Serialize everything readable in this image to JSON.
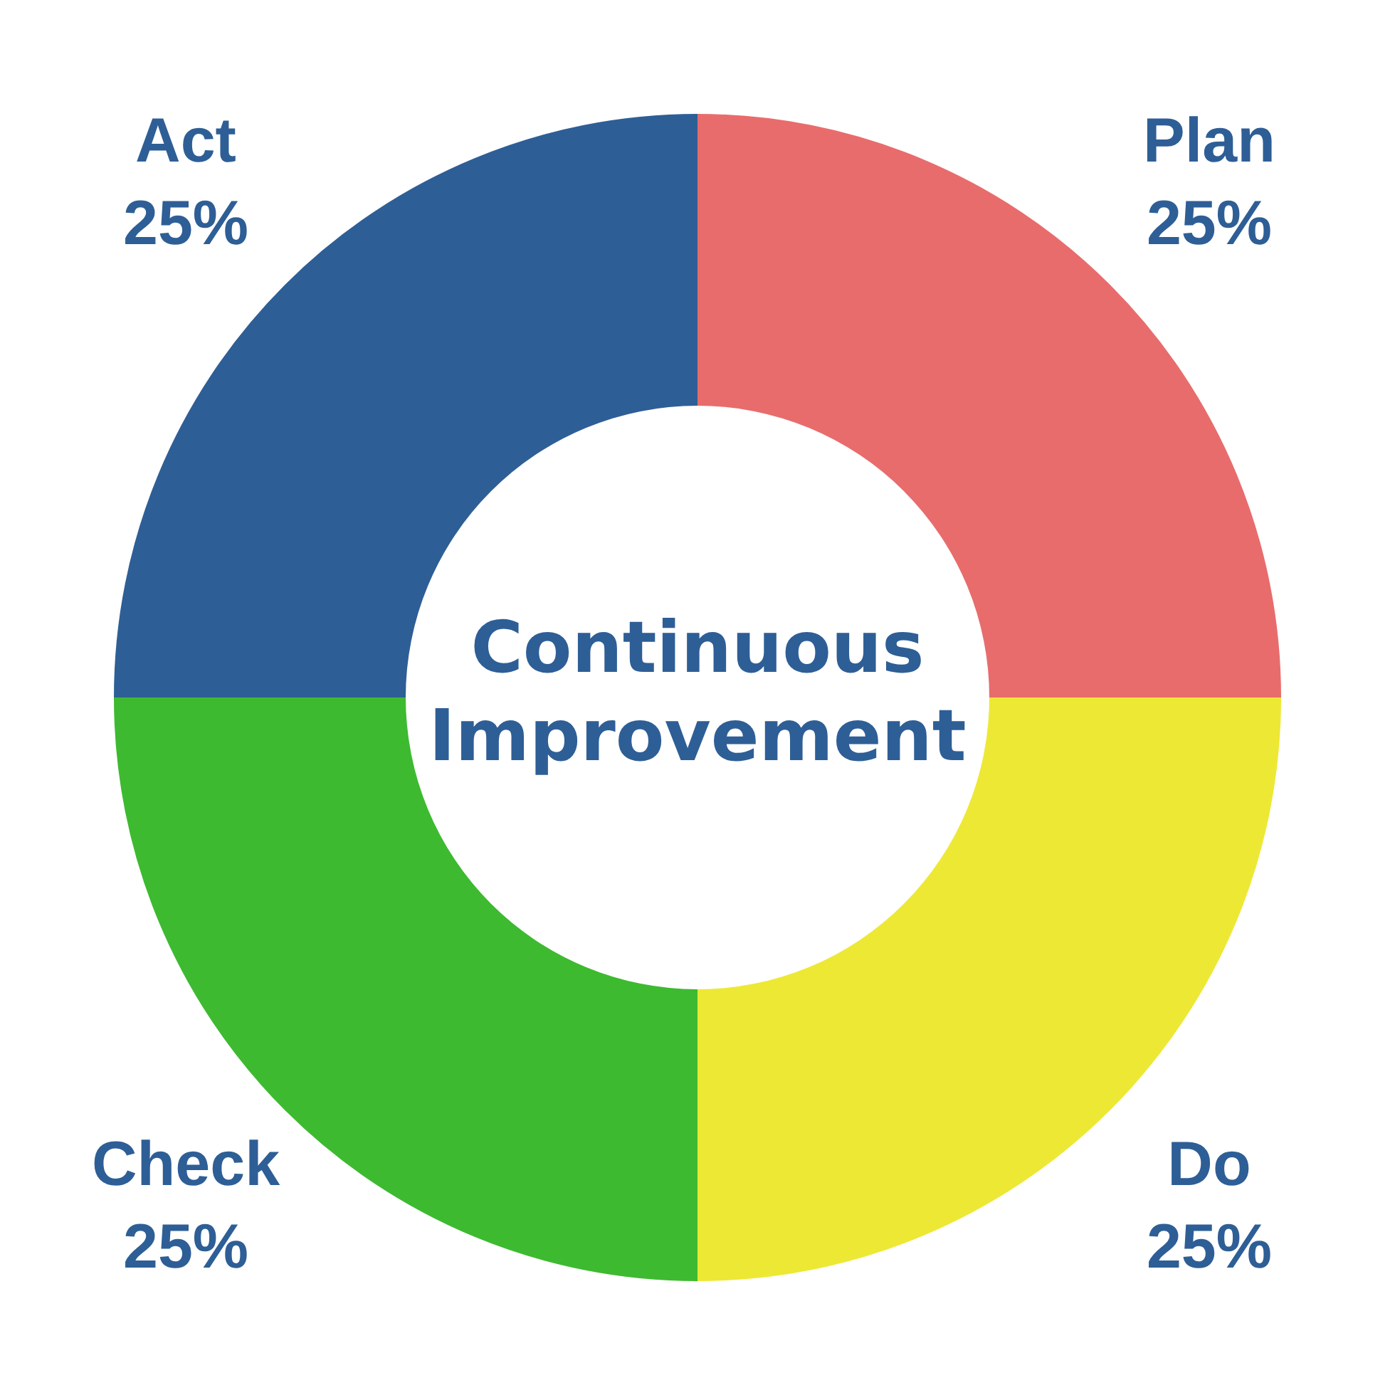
{
  "chart_data": {
    "type": "donut",
    "title": "Continuous Improvement",
    "categories": [
      "Plan",
      "Do",
      "Check",
      "Act"
    ],
    "values": [
      25,
      25,
      25,
      25
    ],
    "colors": [
      "#e86c6c",
      "#ede834",
      "#3dba30",
      "#2e5e96"
    ],
    "value_labels": [
      "25%",
      "25%",
      "25%",
      "25%"
    ],
    "legend": false
  }
}
